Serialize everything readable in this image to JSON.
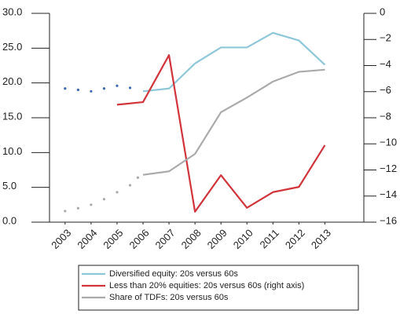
{
  "chart_data": {
    "type": "line",
    "xlim": [
      2002.4,
      2014.5
    ],
    "xticks": [
      2003,
      2004,
      2005,
      2006,
      2007,
      2008,
      2009,
      2010,
      2011,
      2012,
      2013
    ],
    "ylim": [
      0,
      30
    ],
    "yticks": [
      {
        "value": 0,
        "label": "0.0"
      },
      {
        "value": 5,
        "label": "5.0"
      },
      {
        "value": 10,
        "label": "10.0"
      },
      {
        "value": 15,
        "label": "15.0"
      },
      {
        "value": 20,
        "label": "20.0"
      },
      {
        "value": 25,
        "label": "25.0"
      },
      {
        "value": 30,
        "label": "30.0"
      }
    ],
    "y2lim": [
      -16,
      0
    ],
    "y2ticks": [
      0,
      {
        "value": -2,
        "label": "−2"
      },
      {
        "value": -4,
        "label": "−4"
      },
      {
        "value": -6,
        "label": "−6"
      },
      {
        "value": -8,
        "label": "−8"
      },
      {
        "value": -10,
        "label": "−10"
      },
      {
        "value": -12,
        "label": "−12"
      },
      {
        "value": -14,
        "label": "−14"
      },
      {
        "value": -16,
        "label": "−16"
      }
    ],
    "series": [
      {
        "name": "Diversified equity: 20s versus 60s",
        "color": "#8ec7d8",
        "x": [
          2006,
          2007,
          2008,
          2009,
          2010,
          2011,
          2012,
          2013
        ],
        "values": [
          18.8,
          19.2,
          22.8,
          25.1,
          25.1,
          27.2,
          26.1,
          22.6
        ]
      },
      {
        "name": "Less than 20% equities: 20s versus 60s (right axis)",
        "color": "#d1343b",
        "axis": "y2",
        "x": [
          2005,
          2006,
          2007,
          2008,
          2009,
          2010,
          2011,
          2012,
          2013
        ],
        "values": [
          -7.0,
          -6.8,
          -3.2,
          -15.2,
          -12.4,
          -14.9,
          -13.7,
          -13.3,
          -10.1
        ]
      },
      {
        "name": "Share of TDFs: 20s versus 60s",
        "color": "#aaaaaa",
        "x": [
          2006,
          2007,
          2008,
          2009,
          2010,
          2011,
          2012,
          2013
        ],
        "values": [
          6.8,
          7.3,
          9.8,
          15.8,
          17.9,
          20.2,
          21.6,
          21.9
        ]
      },
      {
        "style": "dotted",
        "color": "#4069b0",
        "x": [
          2003,
          2003.5,
          2004,
          2004.5,
          2005,
          2005.5
        ],
        "values": [
          19.2,
          19.0,
          18.8,
          19.2,
          19.6,
          19.3
        ]
      },
      {
        "style": "dotted",
        "color": "#aaaaaa",
        "x": [
          2003,
          2003.5,
          2004,
          2004.5,
          2005,
          2005.5,
          2005.8
        ],
        "values": [
          1.6,
          2.0,
          2.5,
          3.3,
          4.3,
          5.3,
          6.4
        ]
      }
    ]
  }
}
